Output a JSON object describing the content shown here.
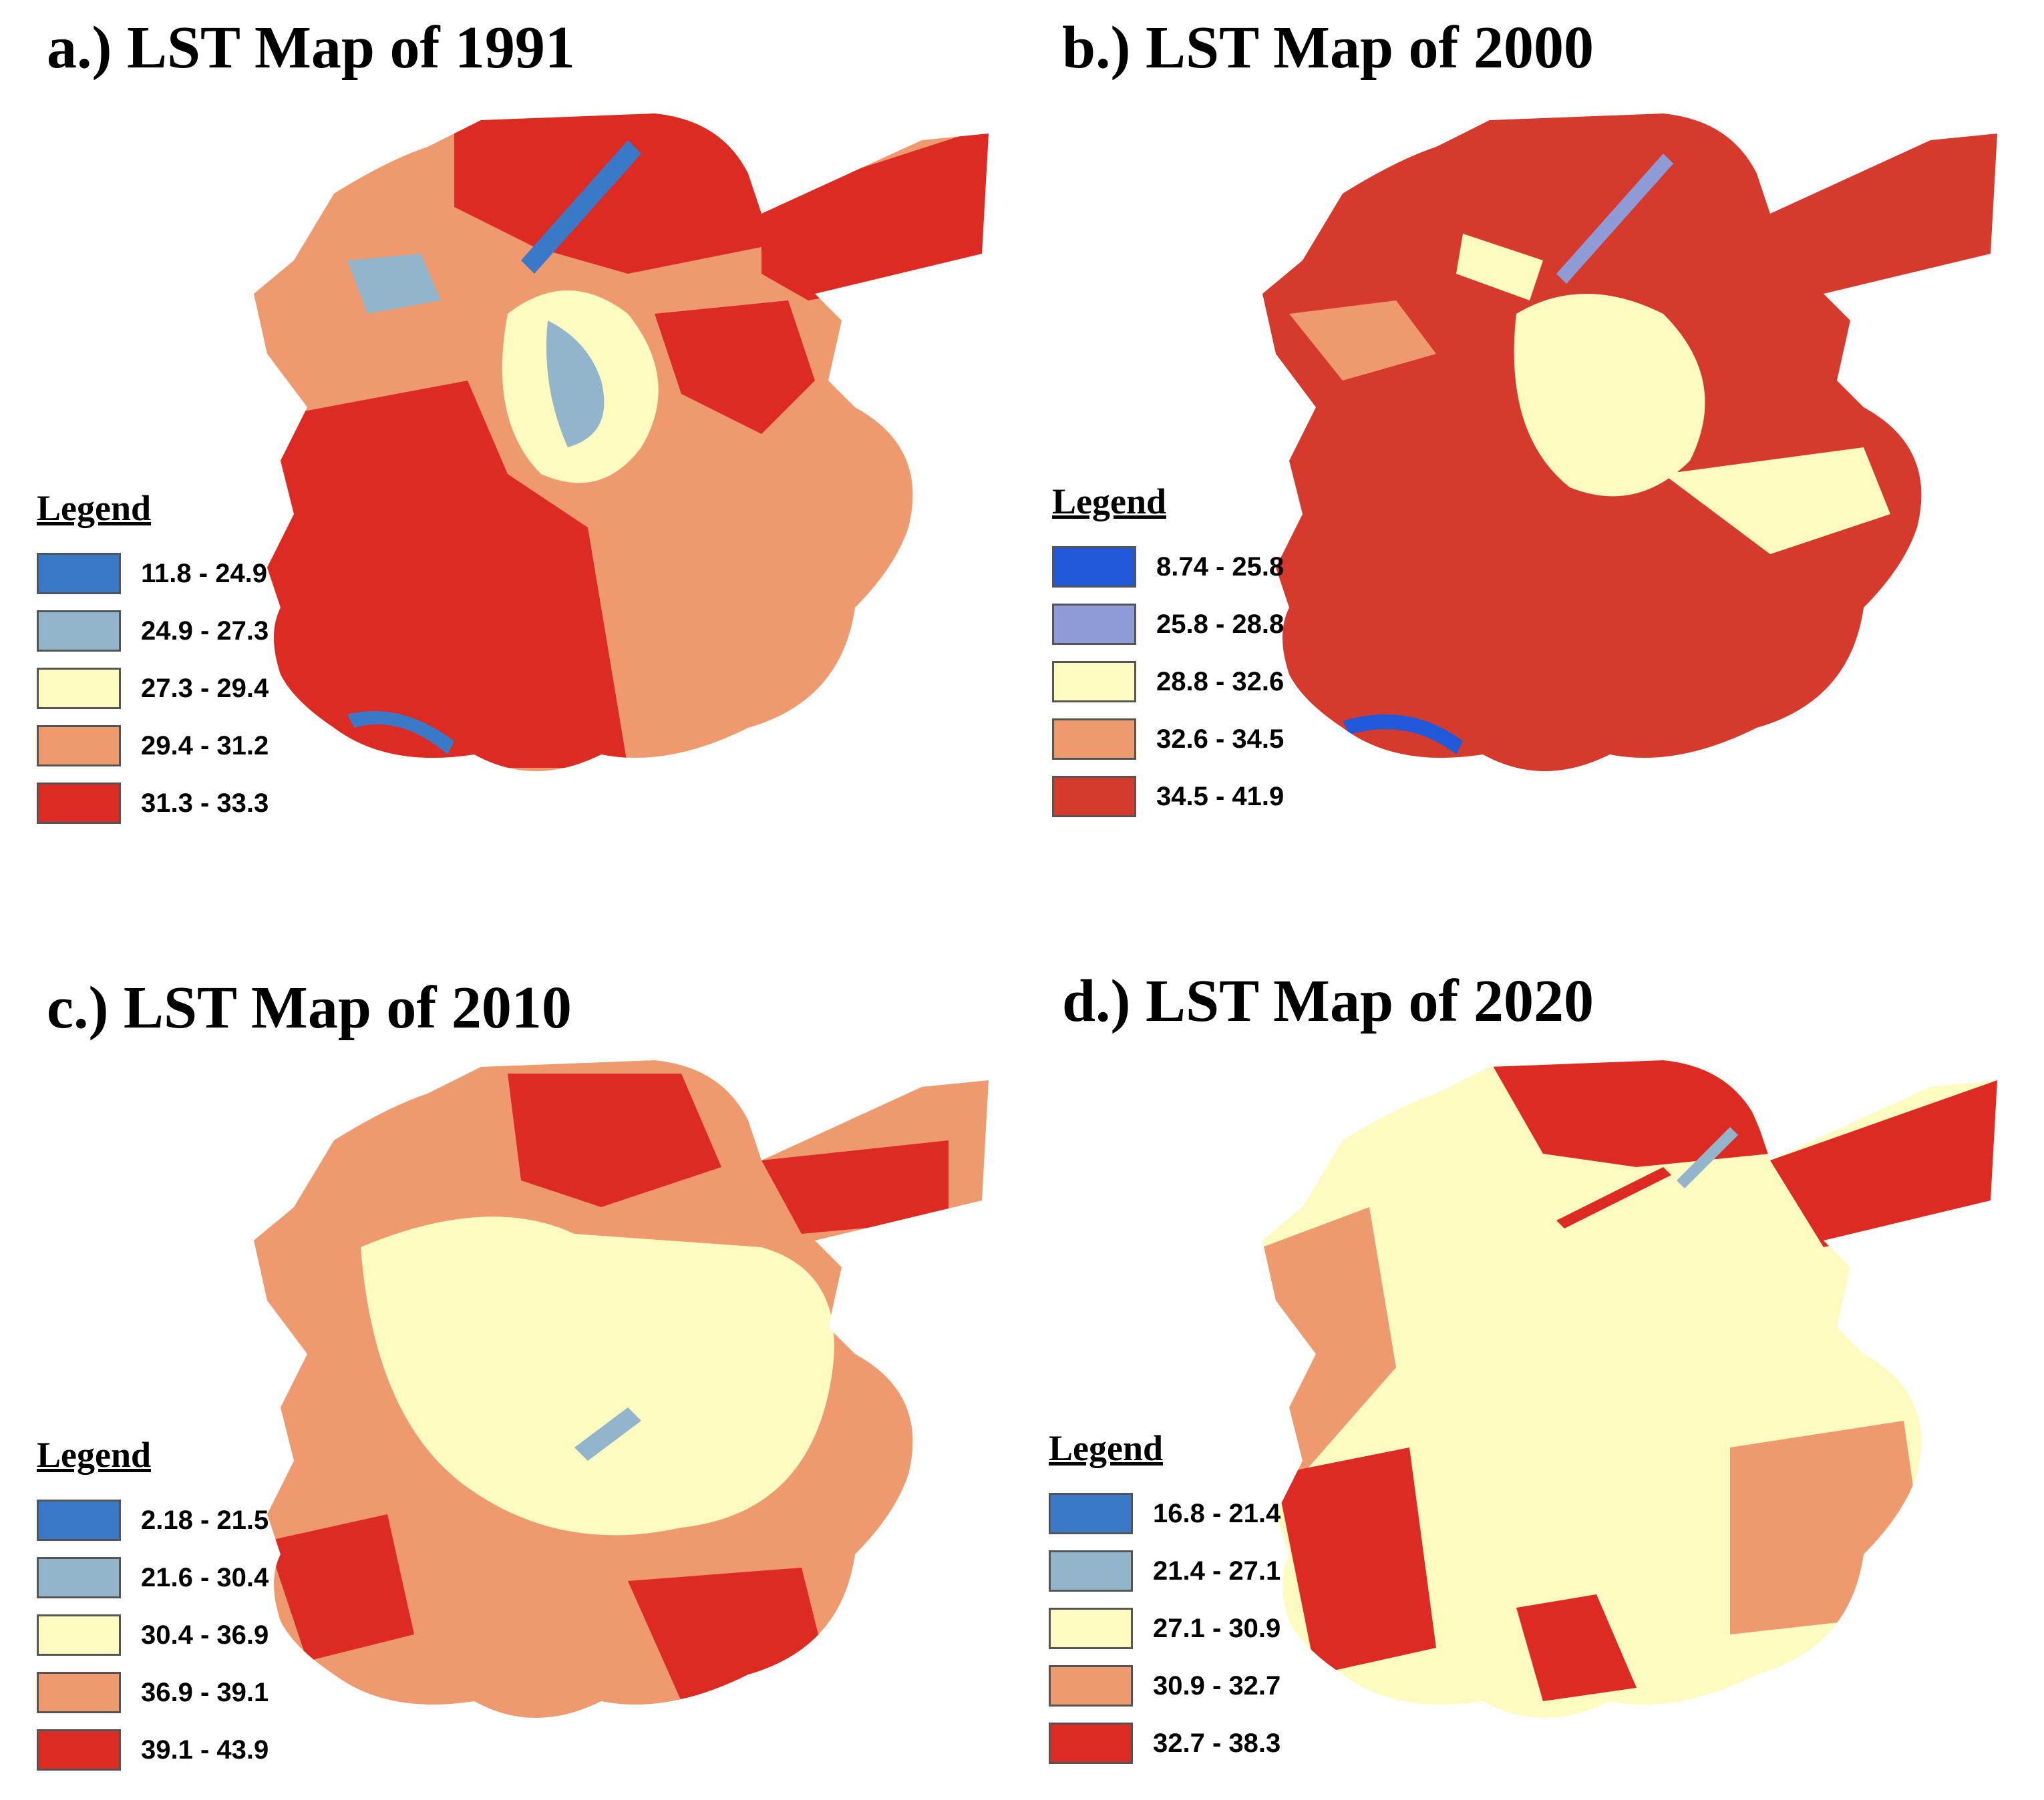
{
  "colors": {
    "blue_dark": "#3a79c8",
    "blue_light": "#93b5cc",
    "yellow": "#fdfbc0",
    "orange": "#ef9a6e",
    "red": "#dd2b24"
  },
  "panels": [
    {
      "title": "a.) LST Map of 1991",
      "legend_title": "Legend",
      "classes": [
        {
          "label": "11.8 - 24.9",
          "color": "#3a79c8"
        },
        {
          "label": "24.9 - 27.3",
          "color": "#93b5cc"
        },
        {
          "label": "27.3 - 29.4",
          "color": "#fdfbc0"
        },
        {
          "label": "29.4 - 31.2",
          "color": "#ef9a6e"
        },
        {
          "label": "31.3 - 33.3",
          "color": "#dd2b24"
        }
      ]
    },
    {
      "title": "b.) LST Map of 2000",
      "legend_title": "Legend",
      "classes": [
        {
          "label": "8.74 - 25.8",
          "color": "#2159db"
        },
        {
          "label": "25.8 - 28.8",
          "color": "#8e9bd6"
        },
        {
          "label": "28.8 - 32.6",
          "color": "#fdfbc0"
        },
        {
          "label": "32.6 - 34.5",
          "color": "#ef9a6e"
        },
        {
          "label": "34.5 - 41.9",
          "color": "#d63a2c"
        }
      ]
    },
    {
      "title": "c.) LST Map of 2010",
      "legend_title": "Legend",
      "classes": [
        {
          "label": "2.18 - 21.5",
          "color": "#3a79c8"
        },
        {
          "label": "21.6 - 30.4",
          "color": "#93b5cc"
        },
        {
          "label": "30.4 - 36.9",
          "color": "#fdfbc0"
        },
        {
          "label": "36.9 - 39.1",
          "color": "#ef9a6e"
        },
        {
          "label": "39.1 - 43.9",
          "color": "#dd2b24"
        }
      ]
    },
    {
      "title": "d.) LST Map of 2020",
      "legend_title": "Legend",
      "classes": [
        {
          "label": "16.8 - 21.4",
          "color": "#3a79c8"
        },
        {
          "label": "21.4 - 27.1",
          "color": "#93b5cc"
        },
        {
          "label": "27.1 - 30.9",
          "color": "#fdfbc0"
        },
        {
          "label": "30.9 - 32.7",
          "color": "#ef9a6e"
        },
        {
          "label": "32.7 - 38.3",
          "color": "#dd2b24"
        }
      ]
    }
  ]
}
